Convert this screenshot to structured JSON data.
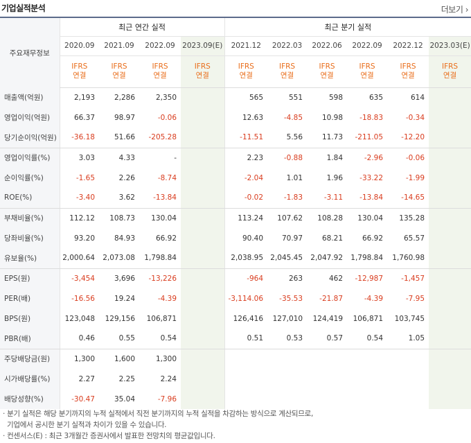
{
  "header": {
    "title": "기업실적분석",
    "more_label": "더보기 ›"
  },
  "table": {
    "label_header": "주요재무정보",
    "annual_group": "최근 연간 실적",
    "quarter_group": "최근 분기 실적",
    "annual_periods": [
      "2020.09",
      "2021.09",
      "2022.09",
      "2023.09(E)"
    ],
    "quarter_periods": [
      "2021.12",
      "2022.03",
      "2022.06",
      "2022.09",
      "2022.12",
      "2023.03(E)"
    ],
    "ifrs_top": "IFRS",
    "ifrs_bottom": "연결",
    "rows": [
      {
        "label": "매출액(억원)",
        "annual": [
          "2,193",
          "2,286",
          "2,350",
          ""
        ],
        "quarter": [
          "565",
          "551",
          "598",
          "635",
          "614",
          ""
        ]
      },
      {
        "label": "영업이익(억원)",
        "annual": [
          "66.37",
          "98.97",
          "-0.06",
          ""
        ],
        "quarter": [
          "12.63",
          "-4.85",
          "10.98",
          "-18.83",
          "-0.34",
          ""
        ]
      },
      {
        "label": "당기순이익(억원)",
        "annual": [
          "-36.18",
          "51.66",
          "-205.28",
          ""
        ],
        "quarter": [
          "-11.51",
          "5.56",
          "11.73",
          "-211.05",
          "-12.20",
          ""
        ]
      },
      {
        "label": "영업이익률(%)",
        "annual": [
          "3.03",
          "4.33",
          "-",
          ""
        ],
        "quarter": [
          "2.23",
          "-0.88",
          "1.84",
          "-2.96",
          "-0.06",
          ""
        ]
      },
      {
        "label": "순이익률(%)",
        "annual": [
          "-1.65",
          "2.26",
          "-8.74",
          ""
        ],
        "quarter": [
          "-2.04",
          "1.01",
          "1.96",
          "-33.22",
          "-1.99",
          ""
        ]
      },
      {
        "label": "ROE(%)",
        "annual": [
          "-3.40",
          "3.62",
          "-13.84",
          ""
        ],
        "quarter": [
          "-0.02",
          "-1.83",
          "-3.11",
          "-13.84",
          "-14.65",
          ""
        ]
      },
      {
        "label": "부채비율(%)",
        "annual": [
          "112.12",
          "108.73",
          "130.04",
          ""
        ],
        "quarter": [
          "113.24",
          "107.62",
          "108.28",
          "130.04",
          "135.28",
          ""
        ]
      },
      {
        "label": "당좌비율(%)",
        "annual": [
          "93.20",
          "84.93",
          "66.92",
          ""
        ],
        "quarter": [
          "90.40",
          "70.97",
          "68.21",
          "66.92",
          "65.57",
          ""
        ]
      },
      {
        "label": "유보율(%)",
        "annual": [
          "2,000.64",
          "2,073.08",
          "1,798.84",
          ""
        ],
        "quarter": [
          "2,038.95",
          "2,045.45",
          "2,047.92",
          "1,798.84",
          "1,760.98",
          ""
        ]
      },
      {
        "label": "EPS(원)",
        "annual": [
          "-3,454",
          "3,696",
          "-13,226",
          ""
        ],
        "quarter": [
          "-964",
          "263",
          "462",
          "-12,987",
          "-1,457",
          ""
        ]
      },
      {
        "label": "PER(배)",
        "annual": [
          "-16.56",
          "19.24",
          "-4.39",
          ""
        ],
        "quarter": [
          "-3,114.06",
          "-35.53",
          "-21.87",
          "-4.39",
          "-7.95",
          ""
        ]
      },
      {
        "label": "BPS(원)",
        "annual": [
          "123,048",
          "129,156",
          "106,871",
          ""
        ],
        "quarter": [
          "126,416",
          "127,010",
          "124,419",
          "106,871",
          "103,745",
          ""
        ]
      },
      {
        "label": "PBR(배)",
        "annual": [
          "0.46",
          "0.55",
          "0.54",
          ""
        ],
        "quarter": [
          "0.51",
          "0.53",
          "0.57",
          "0.54",
          "1.05",
          ""
        ]
      },
      {
        "label": "주당배당금(원)",
        "annual": [
          "1,300",
          "1,600",
          "1,300",
          ""
        ],
        "quarter": [
          "",
          "",
          "",
          "",
          "",
          ""
        ]
      },
      {
        "label": "시가배당률(%)",
        "annual": [
          "2.27",
          "2.25",
          "2.24",
          ""
        ],
        "quarter": [
          "",
          "",
          "",
          "",
          "",
          ""
        ]
      },
      {
        "label": "배당성향(%)",
        "annual": [
          "-30.47",
          "35.04",
          "-7.96",
          ""
        ],
        "quarter": [
          "",
          "",
          "",
          "",
          "",
          ""
        ]
      }
    ]
  },
  "notes": [
    "· 분기 실적은 해당 분기까지의 누적 실적에서 직전 분기까지의 누적 실적을 차감하는 방식으로 계산되므로,",
    "  기업에서 공시한 분기 실적과 차이가 있을 수 있습니다.",
    "· 컨센서스(E) : 최근 3개월간 증권사에서 발표한 전망치의 평균값입니다."
  ],
  "colors": {
    "negative": "#d93c1e",
    "ifrs": "#e96d1a",
    "estimate_bg": "#f1f5ec",
    "label_bg": "#f5f6f8",
    "border_top": "#5c6b8a"
  }
}
